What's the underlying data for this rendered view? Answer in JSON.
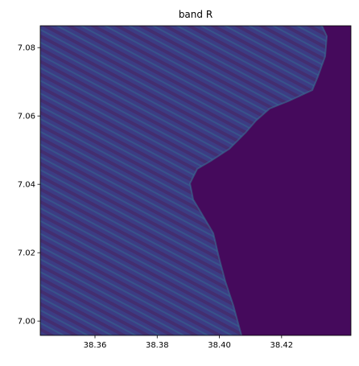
{
  "chart_data": {
    "type": "image",
    "title": "band R",
    "xlim": [
      38.3424,
      38.4423
    ],
    "ylim": [
      6.9958,
      7.0864
    ],
    "xticks": [
      38.36,
      38.38,
      {
        "value": 38.4,
        "label": "38.40"
      },
      38.42
    ],
    "yticks": [
      {
        "value": 7.0,
        "label": "7.00"
      },
      7.02,
      7.04,
      7.06,
      7.08
    ]
  }
}
